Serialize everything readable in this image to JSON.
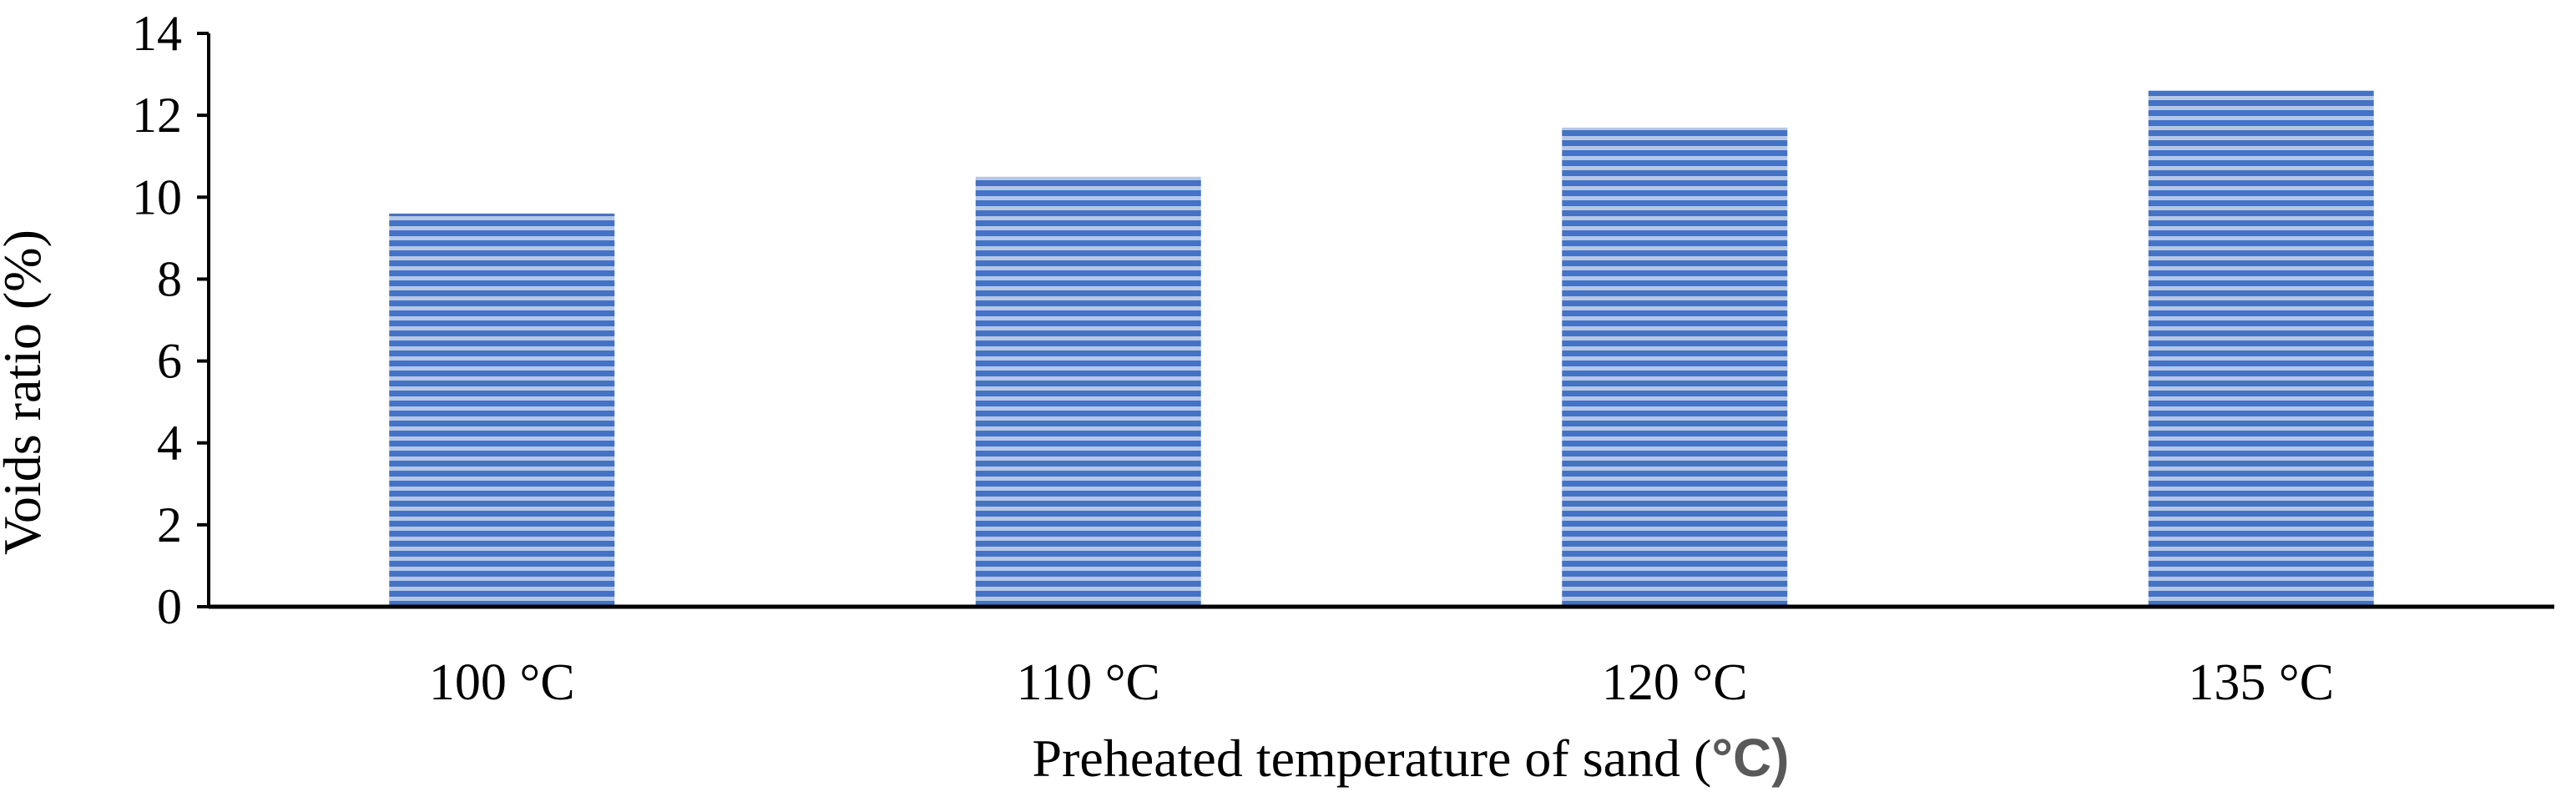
{
  "chart_data": {
    "type": "bar",
    "title": "",
    "categories": [
      "100 °C",
      "110 °C",
      "120 °C",
      "135 °C"
    ],
    "series": [
      {
        "name": "Voids ratio",
        "values": [
          9.6,
          10.5,
          11.7,
          12.6
        ]
      }
    ],
    "xlabel": "Preheated temperature of sand (",
    "xlabel_unit": "°C)",
    "ylabel": "Voids ratio (%)",
    "ylim": [
      0,
      14
    ],
    "yticks": [
      0,
      2,
      4,
      6,
      8,
      10,
      12,
      14
    ],
    "grid": false,
    "legend": "none",
    "bar_color": "#4472C4",
    "bar_stripe_color": "#B4C7E7",
    "bar_pattern": "horizontal-stripes"
  }
}
